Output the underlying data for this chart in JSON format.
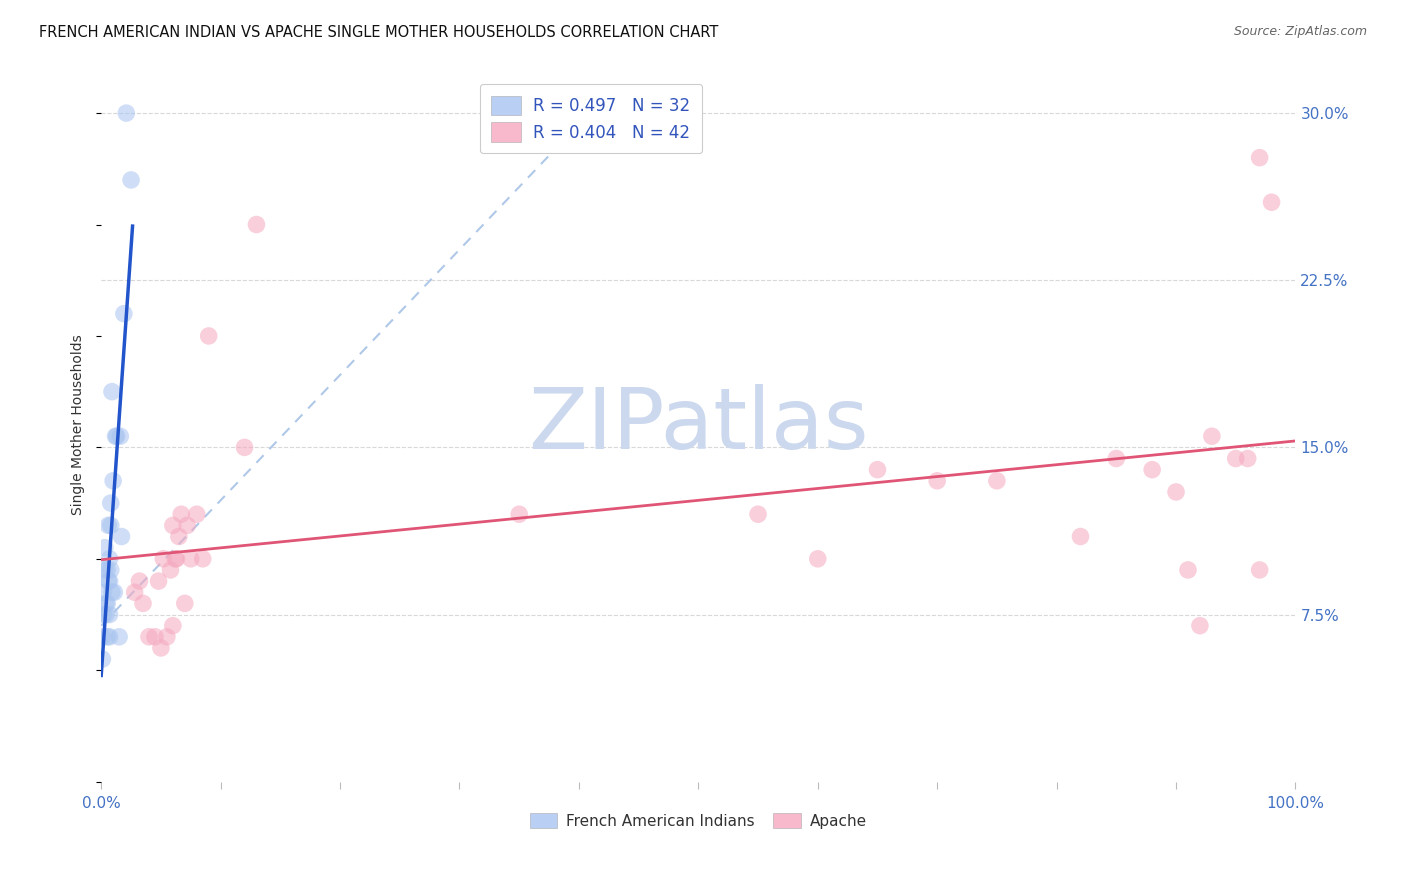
{
  "title": "FRENCH AMERICAN INDIAN VS APACHE SINGLE MOTHER HOUSEHOLDS CORRELATION CHART",
  "source": "Source: ZipAtlas.com",
  "ylabel": "Single Mother Households",
  "watermark": "ZIPatlas",
  "legend1_label": "R = 0.497   N = 32",
  "legend2_label": "R = 0.404   N = 42",
  "legend1_color": "#a8c4f0",
  "legend2_color": "#f5a8be",
  "blue_line_color": "#2255cc",
  "pink_line_color": "#e05575",
  "dashed_line_color": "#b0c8e8",
  "grid_color": "#d8d8d8",
  "bg_color": "#ffffff",
  "tick_label_color": "#4472c4",
  "watermark_color": "#ccd8ee",
  "title_fontsize": 10.5,
  "axis_label_fontsize": 10,
  "tick_fontsize": 11,
  "xlim": [
    0.0,
    1.0
  ],
  "ylim": [
    0.0,
    0.32
  ],
  "ytick_positions": [
    0.075,
    0.15,
    0.225,
    0.3
  ],
  "ytick_labels": [
    "7.5%",
    "15.0%",
    "22.5%",
    "30.0%"
  ],
  "french_x": [
    0.001,
    0.001,
    0.002,
    0.002,
    0.003,
    0.003,
    0.004,
    0.004,
    0.005,
    0.005,
    0.005,
    0.006,
    0.006,
    0.007,
    0.007,
    0.007,
    0.007,
    0.008,
    0.008,
    0.008,
    0.009,
    0.009,
    0.01,
    0.011,
    0.012,
    0.013,
    0.015,
    0.016,
    0.017,
    0.019,
    0.021,
    0.025
  ],
  "french_y": [
    0.055,
    0.065,
    0.075,
    0.085,
    0.095,
    0.105,
    0.075,
    0.08,
    0.065,
    0.08,
    0.095,
    0.09,
    0.115,
    0.065,
    0.075,
    0.09,
    0.1,
    0.095,
    0.115,
    0.125,
    0.085,
    0.175,
    0.135,
    0.085,
    0.155,
    0.155,
    0.065,
    0.155,
    0.11,
    0.21,
    0.3,
    0.27
  ],
  "apache_x": [
    0.028,
    0.032,
    0.035,
    0.04,
    0.045,
    0.048,
    0.05,
    0.052,
    0.055,
    0.058,
    0.06,
    0.06,
    0.062,
    0.063,
    0.065,
    0.067,
    0.07,
    0.072,
    0.075,
    0.08,
    0.085,
    0.09,
    0.12,
    0.13,
    0.35,
    0.55,
    0.6,
    0.65,
    0.7,
    0.75,
    0.82,
    0.85,
    0.88,
    0.9,
    0.91,
    0.92,
    0.93,
    0.95,
    0.96,
    0.97,
    0.97,
    0.98
  ],
  "apache_y": [
    0.085,
    0.09,
    0.08,
    0.065,
    0.065,
    0.09,
    0.06,
    0.1,
    0.065,
    0.095,
    0.07,
    0.115,
    0.1,
    0.1,
    0.11,
    0.12,
    0.08,
    0.115,
    0.1,
    0.12,
    0.1,
    0.2,
    0.15,
    0.25,
    0.12,
    0.12,
    0.1,
    0.14,
    0.135,
    0.135,
    0.11,
    0.145,
    0.14,
    0.13,
    0.095,
    0.07,
    0.155,
    0.145,
    0.145,
    0.095,
    0.28,
    0.26
  ],
  "scatter_size": 160,
  "scatter_alpha": 0.55
}
